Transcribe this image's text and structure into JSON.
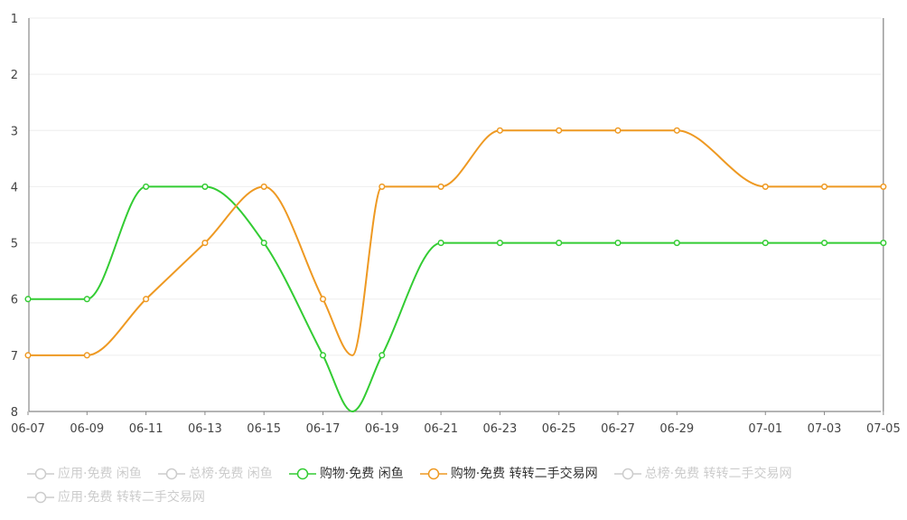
{
  "chart_data": {
    "type": "line",
    "title": "",
    "xlabel": "",
    "ylabel": "",
    "y_reversed": true,
    "ylim": [
      1,
      8
    ],
    "y_ticks": [
      "1",
      "2",
      "3",
      "4",
      "5",
      "6",
      "7",
      "8"
    ],
    "x_ticks": [
      "06-07",
      "06-09",
      "06-11",
      "06-13",
      "06-15",
      "06-17",
      "06-19",
      "06-21",
      "06-23",
      "06-25",
      "06-27",
      "06-29",
      "07-01",
      "07-03",
      "07-05"
    ],
    "x": [
      "06-07",
      "06-09",
      "06-11",
      "06-13",
      "06-15",
      "06-17",
      "06-18",
      "06-19",
      "06-21",
      "06-23",
      "06-25",
      "06-27",
      "06-29",
      "07-01",
      "07-03",
      "07-05"
    ],
    "grid": true,
    "cursor_x": "07-05",
    "legend_position": "bottom",
    "series": [
      {
        "name": "购物·免费  闲鱼",
        "color": "#33cc33",
        "values": [
          6,
          6,
          4,
          4,
          5,
          7,
          8,
          7,
          5,
          5,
          5,
          5,
          5,
          5,
          5,
          5
        ]
      },
      {
        "name": "购物·免费  转转二手交易网",
        "color": "#ee9922",
        "values": [
          7,
          7,
          6,
          5,
          4,
          6,
          7,
          4,
          4,
          3,
          3,
          3,
          3,
          4,
          4,
          4
        ]
      }
    ],
    "legend": [
      {
        "label": "应用·免费  闲鱼",
        "active": false
      },
      {
        "label": "总榜·免费  闲鱼",
        "active": false
      },
      {
        "label": "购物·免费  闲鱼",
        "active": true,
        "color": "#33cc33"
      },
      {
        "label": "购物·免费  转转二手交易网",
        "active": true,
        "color": "#ee9922"
      },
      {
        "label": "总榜·免费  转转二手交易网",
        "active": false
      },
      {
        "label": "应用·免费  转转二手交易网",
        "active": false
      }
    ],
    "inactive_color": "#cccccc",
    "active_text_color": "#333333"
  }
}
